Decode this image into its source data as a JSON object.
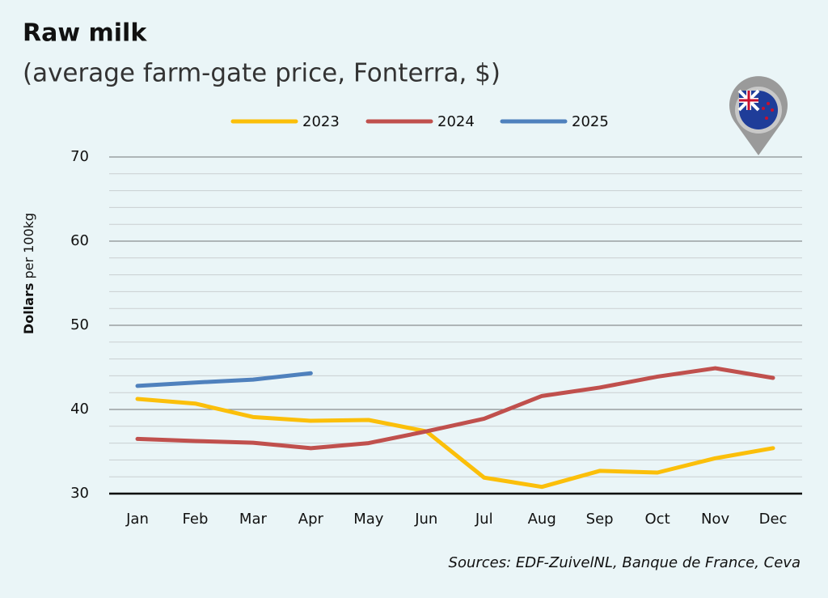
{
  "chart_data": {
    "type": "line",
    "title": "Raw milk",
    "subtitle": "(average farm-gate price, Fonterra, $)",
    "y_label_bold": "Dollars",
    "y_label": "per 100kg",
    "source": "Sources: EDF-ZuivelNL, Banque de France, Ceva",
    "categories": [
      "Jan",
      "Feb",
      "Mar",
      "Apr",
      "May",
      "Jun",
      "Jul",
      "Aug",
      "Sep",
      "Oct",
      "Nov",
      "Dec"
    ],
    "series": [
      {
        "name": "2023",
        "color": "#fbbf0a",
        "values": [
          41.25,
          40.7,
          39.1,
          38.65,
          38.75,
          37.4,
          31.9,
          30.8,
          32.7,
          32.5,
          34.2,
          35.4
        ]
      },
      {
        "name": "2024",
        "color": "#c0504d",
        "values": [
          36.5,
          36.25,
          36.05,
          35.4,
          36.0,
          37.4,
          38.9,
          41.6,
          42.6,
          43.9,
          44.9,
          43.75
        ]
      },
      {
        "name": "2025",
        "color": "#4f81bd",
        "values": [
          42.8,
          43.2,
          43.55,
          44.3,
          null,
          null,
          null,
          null,
          null,
          null,
          null,
          null
        ]
      }
    ],
    "ylim": [
      30,
      70
    ],
    "yticks": [
      30,
      40,
      50,
      60,
      70
    ],
    "minor_yticks": [
      32,
      34,
      36,
      38,
      42,
      44,
      46,
      48,
      52,
      54,
      56,
      58,
      62,
      64,
      66,
      68
    ],
    "grid": true,
    "legend": "top"
  }
}
